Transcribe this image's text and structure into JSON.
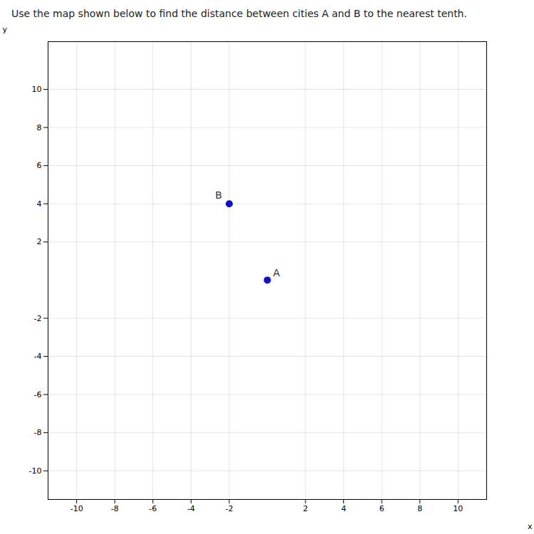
{
  "chart_data": {
    "type": "scatter",
    "title": "Use the map shown below to find the distance between cities A and B to the nearest tenth.",
    "x": [
      0,
      -2
    ],
    "values": [
      0,
      4
    ],
    "labels": [
      "A",
      "B"
    ],
    "color": "#1010cc",
    "xlabel": "x",
    "ylabel": "y",
    "xlim": [
      -11.5,
      11.5
    ],
    "ylim": [
      -11.5,
      12.5
    ],
    "xticks": [
      -10,
      -8,
      -6,
      -4,
      -2,
      2,
      4,
      6,
      8,
      10
    ],
    "yticks": [
      -10,
      -8,
      -6,
      -4,
      -2,
      2,
      4,
      6,
      8,
      10
    ],
    "grid": true
  }
}
